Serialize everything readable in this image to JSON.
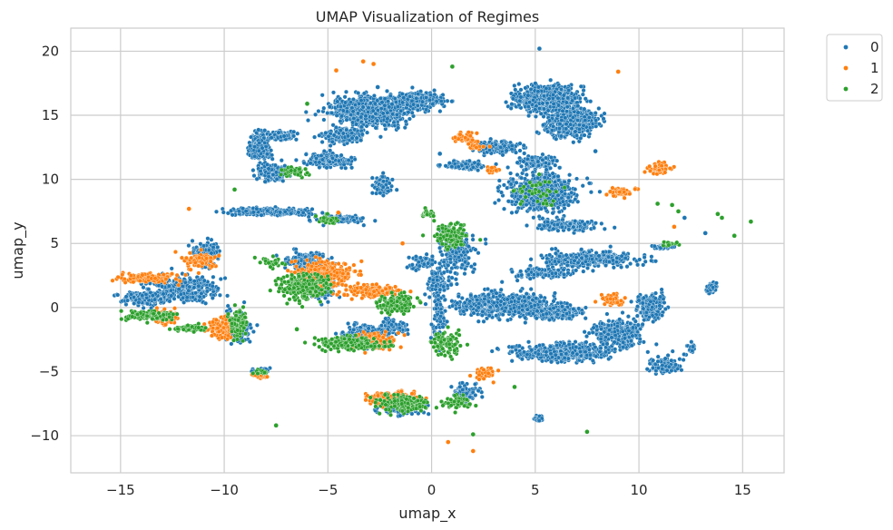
{
  "chart_data": {
    "type": "scatter",
    "title": "UMAP Visualization of Regimes",
    "xlabel": "umap_x",
    "ylabel": "umap_y",
    "xlim": [
      -17.4,
      17.0
    ],
    "ylim": [
      -12.9,
      21.8
    ],
    "xticks": [
      -15,
      -10,
      -5,
      0,
      5,
      10,
      15
    ],
    "yticks": [
      -10,
      -5,
      0,
      5,
      10,
      15,
      20
    ],
    "xtick_labels": [
      "−15",
      "−10",
      "−5",
      "0",
      "5",
      "10",
      "15"
    ],
    "ytick_labels": [
      "−10",
      "−5",
      "0",
      "5",
      "10",
      "15",
      "20"
    ],
    "grid": true,
    "legend_position": "outside-top-right",
    "series": [
      {
        "name": "0",
        "color": "#1f77b4",
        "clusters": [
          {
            "x": -3.0,
            "y": 15.3,
            "sx": 1.6,
            "sy": 1.0,
            "n": 900
          },
          {
            "x": -0.6,
            "y": 16.2,
            "sx": 1.0,
            "sy": 0.5,
            "n": 300
          },
          {
            "x": -4.3,
            "y": 13.4,
            "sx": 0.8,
            "sy": 0.5,
            "n": 200
          },
          {
            "x": 5.6,
            "y": 16.3,
            "sx": 1.3,
            "sy": 0.9,
            "n": 700
          },
          {
            "x": 6.8,
            "y": 14.4,
            "sx": 1.0,
            "sy": 0.9,
            "n": 500
          },
          {
            "x": 3.2,
            "y": 12.5,
            "sx": 0.9,
            "sy": 0.4,
            "n": 200
          },
          {
            "x": 1.6,
            "y": 11.1,
            "sx": 0.9,
            "sy": 0.25,
            "n": 120
          },
          {
            "x": -8.3,
            "y": 12.6,
            "sx": 0.4,
            "sy": 0.9,
            "n": 300
          },
          {
            "x": -7.2,
            "y": 13.4,
            "sx": 0.5,
            "sy": 0.3,
            "n": 120
          },
          {
            "x": -7.6,
            "y": 10.5,
            "sx": 0.7,
            "sy": 0.6,
            "n": 160
          },
          {
            "x": -5.0,
            "y": 11.5,
            "sx": 1.0,
            "sy": 0.5,
            "n": 200
          },
          {
            "x": -8.0,
            "y": 7.5,
            "sx": 1.8,
            "sy": 0.25,
            "n": 220
          },
          {
            "x": -4.5,
            "y": 6.9,
            "sx": 1.1,
            "sy": 0.25,
            "n": 140
          },
          {
            "x": -2.4,
            "y": 9.6,
            "sx": 0.4,
            "sy": 0.7,
            "n": 80
          },
          {
            "x": 5.3,
            "y": 9.0,
            "sx": 1.4,
            "sy": 1.3,
            "n": 700
          },
          {
            "x": 5.0,
            "y": 11.3,
            "sx": 0.8,
            "sy": 0.4,
            "n": 150
          },
          {
            "x": 6.5,
            "y": 6.4,
            "sx": 1.2,
            "sy": 0.3,
            "n": 200
          },
          {
            "x": 7.6,
            "y": 3.8,
            "sx": 2.0,
            "sy": 0.5,
            "n": 400
          },
          {
            "x": 5.4,
            "y": 2.7,
            "sx": 1.2,
            "sy": 0.35,
            "n": 150
          },
          {
            "x": 3.5,
            "y": 0.2,
            "sx": 2.0,
            "sy": 0.8,
            "n": 600
          },
          {
            "x": 6.0,
            "y": -0.4,
            "sx": 1.1,
            "sy": 0.5,
            "n": 250
          },
          {
            "x": 6.3,
            "y": -3.5,
            "sx": 2.0,
            "sy": 0.55,
            "n": 500
          },
          {
            "x": 9.0,
            "y": -2.0,
            "sx": 1.0,
            "sy": 1.0,
            "n": 350
          },
          {
            "x": 10.6,
            "y": 0.0,
            "sx": 0.5,
            "sy": 0.9,
            "n": 200
          },
          {
            "x": 11.2,
            "y": -4.5,
            "sx": 0.7,
            "sy": 0.5,
            "n": 120
          },
          {
            "x": 13.5,
            "y": 1.5,
            "sx": 0.2,
            "sy": 0.4,
            "n": 50
          },
          {
            "x": 12.5,
            "y": -3.2,
            "sx": 0.2,
            "sy": 0.4,
            "n": 30
          },
          {
            "x": 11.1,
            "y": 4.7,
            "sx": 0.4,
            "sy": 0.15,
            "n": 30
          },
          {
            "x": 1.1,
            "y": 4.3,
            "sx": 0.8,
            "sy": 1.6,
            "n": 200
          },
          {
            "x": 0.3,
            "y": 1.8,
            "sx": 0.5,
            "sy": 1.0,
            "n": 120
          },
          {
            "x": -0.5,
            "y": 3.6,
            "sx": 0.5,
            "sy": 0.6,
            "n": 60
          },
          {
            "x": -11.9,
            "y": 1.4,
            "sx": 1.3,
            "sy": 0.9,
            "n": 350
          },
          {
            "x": -10.9,
            "y": 4.3,
            "sx": 0.5,
            "sy": 0.8,
            "n": 150
          },
          {
            "x": -9.4,
            "y": -1.5,
            "sx": 0.6,
            "sy": 1.0,
            "n": 150
          },
          {
            "x": -13.9,
            "y": 0.7,
            "sx": 1.0,
            "sy": 0.5,
            "n": 200
          },
          {
            "x": -5.3,
            "y": 1.5,
            "sx": 0.6,
            "sy": 0.8,
            "n": 150
          },
          {
            "x": -6.1,
            "y": 3.6,
            "sx": 1.0,
            "sy": 0.6,
            "n": 150
          },
          {
            "x": -3.3,
            "y": -2.1,
            "sx": 1.0,
            "sy": 0.6,
            "n": 200
          },
          {
            "x": -1.9,
            "y": -1.5,
            "sx": 0.6,
            "sy": 0.5,
            "n": 100
          },
          {
            "x": -1.4,
            "y": -7.8,
            "sx": 1.0,
            "sy": 0.5,
            "n": 150
          },
          {
            "x": 1.7,
            "y": -6.6,
            "sx": 0.6,
            "sy": 0.6,
            "n": 80
          },
          {
            "x": 5.2,
            "y": -8.7,
            "sx": 0.2,
            "sy": 0.2,
            "n": 30
          },
          {
            "x": -8.2,
            "y": -5.0,
            "sx": 0.4,
            "sy": 0.2,
            "n": 30
          },
          {
            "x": 0.4,
            "y": -1.0,
            "sx": 0.3,
            "sy": 1.5,
            "n": 60
          }
        ],
        "outliers": [
          [
            5.2,
            20.2
          ],
          [
            9.0,
            18.4
          ],
          [
            13.2,
            5.8
          ],
          [
            7.9,
            12.2
          ],
          [
            0.4,
            12.0
          ],
          [
            12.2,
            7.0
          ],
          [
            -2.6,
            17.2
          ]
        ]
      },
      {
        "name": "1",
        "color": "#ff7f0e",
        "clusters": [
          {
            "x": -13.8,
            "y": 2.3,
            "sx": 1.2,
            "sy": 0.3,
            "n": 150
          },
          {
            "x": -12.8,
            "y": -0.8,
            "sx": 0.5,
            "sy": 0.5,
            "n": 80
          },
          {
            "x": -10.1,
            "y": -1.6,
            "sx": 0.5,
            "sy": 0.8,
            "n": 120
          },
          {
            "x": -11.2,
            "y": 3.6,
            "sx": 0.7,
            "sy": 0.6,
            "n": 80
          },
          {
            "x": -5.1,
            "y": 2.6,
            "sx": 1.2,
            "sy": 0.9,
            "n": 300
          },
          {
            "x": -2.8,
            "y": 1.3,
            "sx": 1.2,
            "sy": 0.4,
            "n": 150
          },
          {
            "x": -2.8,
            "y": -2.6,
            "sx": 1.0,
            "sy": 0.6,
            "n": 120
          },
          {
            "x": -1.8,
            "y": -7.1,
            "sx": 1.2,
            "sy": 0.5,
            "n": 150
          },
          {
            "x": 2.6,
            "y": -5.2,
            "sx": 0.5,
            "sy": 0.4,
            "n": 40
          },
          {
            "x": 9.1,
            "y": 9.0,
            "sx": 0.5,
            "sy": 0.3,
            "n": 80
          },
          {
            "x": 11.0,
            "y": 10.8,
            "sx": 0.5,
            "sy": 0.4,
            "n": 70
          },
          {
            "x": 8.8,
            "y": 0.6,
            "sx": 0.5,
            "sy": 0.4,
            "n": 50
          },
          {
            "x": 1.6,
            "y": 13.2,
            "sx": 0.6,
            "sy": 0.4,
            "n": 50
          },
          {
            "x": -8.3,
            "y": -5.3,
            "sx": 0.3,
            "sy": 0.2,
            "n": 30
          },
          {
            "x": 3.0,
            "y": 10.7,
            "sx": 0.3,
            "sy": 0.2,
            "n": 15
          },
          {
            "x": 2.3,
            "y": 12.5,
            "sx": 0.4,
            "sy": 0.2,
            "n": 15
          }
        ],
        "outliers": [
          [
            -4.6,
            18.5
          ],
          [
            -3.3,
            19.2
          ],
          [
            -2.8,
            19.0
          ],
          [
            0.8,
            -10.5
          ],
          [
            2.0,
            -11.2
          ],
          [
            -11.7,
            7.7
          ],
          [
            -4.5,
            7.4
          ],
          [
            9.0,
            18.4
          ],
          [
            11.7,
            6.3
          ],
          [
            -1.4,
            5.0
          ]
        ]
      },
      {
        "name": "2",
        "color": "#2ca02c",
        "clusters": [
          {
            "x": -13.6,
            "y": -0.6,
            "sx": 1.1,
            "sy": 0.3,
            "n": 100
          },
          {
            "x": -9.3,
            "y": -1.2,
            "sx": 0.35,
            "sy": 1.0,
            "n": 120
          },
          {
            "x": -11.6,
            "y": -1.6,
            "sx": 0.7,
            "sy": 0.2,
            "n": 60
          },
          {
            "x": -6.1,
            "y": 1.6,
            "sx": 1.1,
            "sy": 0.9,
            "n": 250
          },
          {
            "x": -4.0,
            "y": -2.8,
            "sx": 1.4,
            "sy": 0.5,
            "n": 200
          },
          {
            "x": -1.7,
            "y": 0.3,
            "sx": 0.8,
            "sy": 0.7,
            "n": 150
          },
          {
            "x": -1.3,
            "y": -7.5,
            "sx": 1.0,
            "sy": 0.6,
            "n": 150
          },
          {
            "x": 1.2,
            "y": -7.4,
            "sx": 0.6,
            "sy": 0.5,
            "n": 60
          },
          {
            "x": 0.7,
            "y": -2.8,
            "sx": 0.6,
            "sy": 0.8,
            "n": 100
          },
          {
            "x": 0.9,
            "y": 5.6,
            "sx": 0.7,
            "sy": 0.8,
            "n": 120
          },
          {
            "x": -0.2,
            "y": 7.3,
            "sx": 0.3,
            "sy": 0.3,
            "n": 30
          },
          {
            "x": -6.6,
            "y": 10.6,
            "sx": 0.5,
            "sy": 0.3,
            "n": 40
          },
          {
            "x": -5.0,
            "y": 6.9,
            "sx": 0.5,
            "sy": 0.3,
            "n": 30
          },
          {
            "x": 5.1,
            "y": 9.0,
            "sx": 0.9,
            "sy": 0.9,
            "n": 40
          },
          {
            "x": -8.2,
            "y": -5.0,
            "sx": 0.3,
            "sy": 0.2,
            "n": 20
          },
          {
            "x": 11.5,
            "y": 5.0,
            "sx": 0.4,
            "sy": 0.2,
            "n": 15
          },
          {
            "x": -7.7,
            "y": 3.5,
            "sx": 0.6,
            "sy": 0.3,
            "n": 30
          }
        ],
        "outliers": [
          [
            1.0,
            18.8
          ],
          [
            -6.0,
            15.9
          ],
          [
            -9.5,
            9.2
          ],
          [
            11.6,
            8.0
          ],
          [
            13.8,
            7.3
          ],
          [
            14.0,
            7.0
          ],
          [
            14.6,
            5.6
          ],
          [
            15.4,
            6.7
          ],
          [
            10.9,
            8.1
          ],
          [
            11.9,
            7.5
          ],
          [
            2.0,
            -9.9
          ],
          [
            7.5,
            -9.7
          ],
          [
            -7.5,
            -9.2
          ],
          [
            4.0,
            -6.2
          ],
          [
            -6.5,
            -1.7
          ]
        ]
      }
    ]
  }
}
